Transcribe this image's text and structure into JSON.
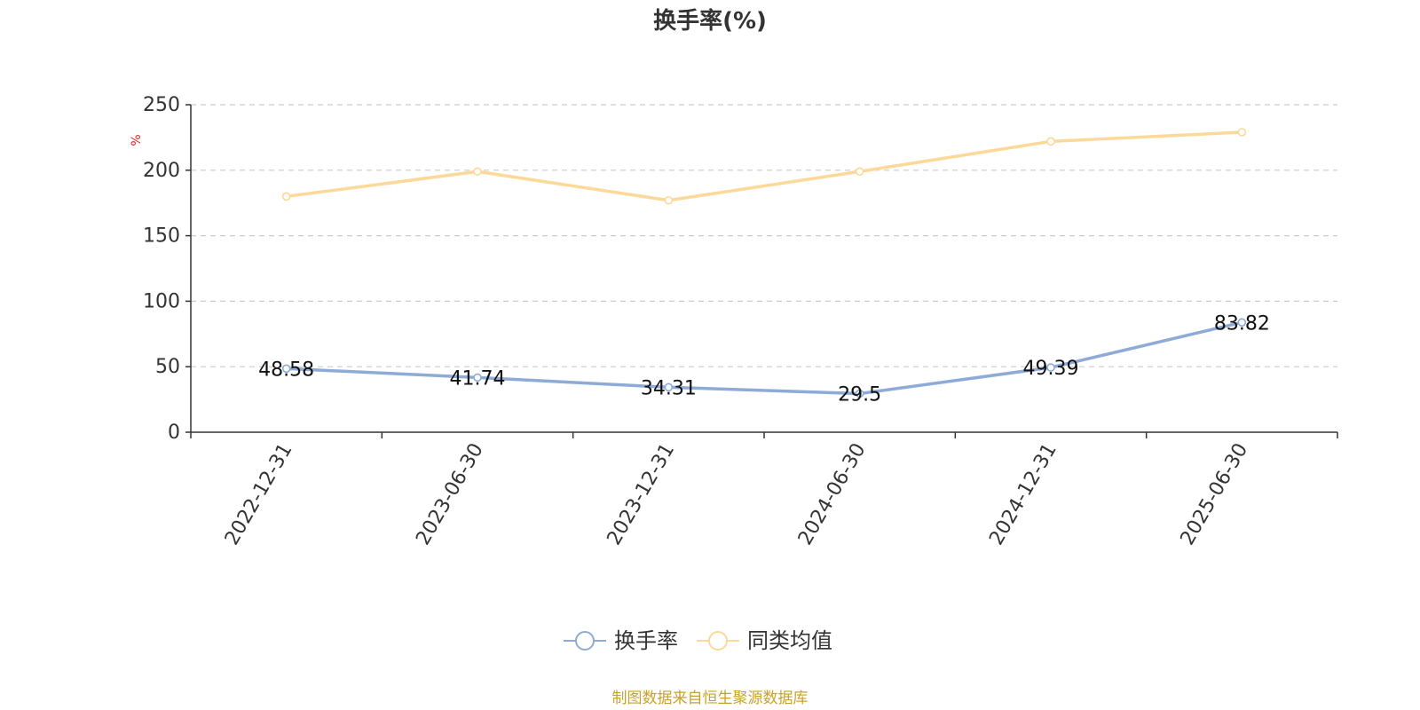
{
  "chart_data": {
    "type": "line",
    "title": "换手率(%)",
    "ylabel": "%",
    "ylim": [
      0,
      250
    ],
    "yticks": [
      0,
      50,
      100,
      150,
      200,
      250
    ],
    "grid": true,
    "legend_position": "bottom-center",
    "x": [
      "2022-12-31",
      "2023-06-30",
      "2023-12-31",
      "2024-06-30",
      "2024-12-31",
      "2025-06-30"
    ],
    "series": [
      {
        "name": "换手率",
        "color": "#8eaad6",
        "values": [
          48.58,
          41.74,
          34.31,
          29.5,
          49.39,
          83.82
        ],
        "show_labels": true
      },
      {
        "name": "同类均值",
        "color": "#fcd998",
        "values": [
          180,
          199,
          177,
          199,
          222,
          229
        ],
        "show_labels": false
      }
    ],
    "ylabel_color": "#e02020"
  },
  "footer": {
    "source": "制图数据来自恒生聚源数据库",
    "color": "#c9a227"
  }
}
